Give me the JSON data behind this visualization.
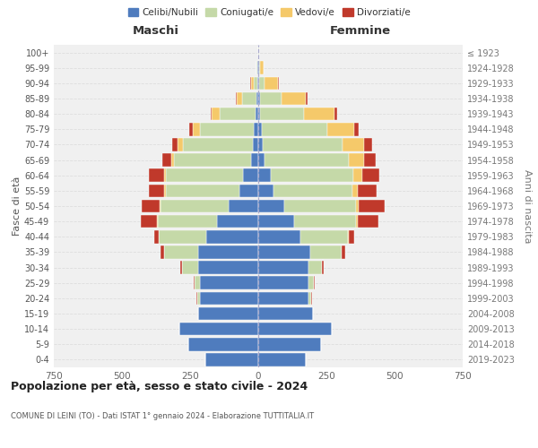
{
  "age_groups": [
    "0-4",
    "5-9",
    "10-14",
    "15-19",
    "20-24",
    "25-29",
    "30-34",
    "35-39",
    "40-44",
    "45-49",
    "50-54",
    "55-59",
    "60-64",
    "65-69",
    "70-74",
    "75-79",
    "80-84",
    "85-89",
    "90-94",
    "95-99",
    "100+"
  ],
  "birth_years": [
    "2019-2023",
    "2014-2018",
    "2009-2013",
    "2004-2008",
    "1999-2003",
    "1994-1998",
    "1989-1993",
    "1984-1988",
    "1979-1983",
    "1974-1978",
    "1969-1973",
    "1964-1968",
    "1959-1963",
    "1954-1958",
    "1949-1953",
    "1944-1948",
    "1939-1943",
    "1934-1938",
    "1929-1933",
    "1924-1928",
    "≤ 1923"
  ],
  "males": {
    "celibe": [
      195,
      255,
      290,
      220,
      215,
      215,
      220,
      220,
      190,
      150,
      110,
      70,
      55,
      25,
      20,
      15,
      10,
      5,
      3,
      2,
      0
    ],
    "coniugato": [
      0,
      0,
      0,
      2,
      10,
      20,
      60,
      125,
      175,
      220,
      250,
      270,
      285,
      285,
      255,
      200,
      130,
      55,
      15,
      3,
      0
    ],
    "vedovo": [
      0,
      0,
      0,
      0,
      0,
      0,
      0,
      0,
      1,
      2,
      3,
      5,
      5,
      8,
      20,
      25,
      30,
      20,
      8,
      2,
      0
    ],
    "divorziato": [
      0,
      0,
      0,
      0,
      2,
      2,
      5,
      15,
      15,
      60,
      65,
      55,
      55,
      35,
      20,
      12,
      5,
      3,
      2,
      0,
      0
    ]
  },
  "females": {
    "nubile": [
      175,
      230,
      270,
      200,
      185,
      185,
      185,
      190,
      155,
      130,
      95,
      55,
      45,
      22,
      18,
      12,
      8,
      5,
      3,
      2,
      0
    ],
    "coniugata": [
      0,
      0,
      0,
      2,
      10,
      20,
      50,
      115,
      175,
      230,
      265,
      290,
      305,
      310,
      290,
      240,
      160,
      80,
      20,
      5,
      2
    ],
    "vedova": [
      0,
      0,
      0,
      0,
      0,
      0,
      0,
      0,
      2,
      5,
      10,
      20,
      30,
      55,
      80,
      100,
      110,
      90,
      50,
      12,
      2
    ],
    "divorziata": [
      0,
      0,
      0,
      0,
      2,
      2,
      5,
      15,
      20,
      75,
      95,
      70,
      65,
      45,
      30,
      15,
      10,
      5,
      2,
      0,
      0
    ]
  },
  "colors": {
    "celibe": "#4f7cbe",
    "coniugato": "#c5d9a8",
    "vedovo": "#f5c96a",
    "divorziato": "#c0392b"
  },
  "title": "Popolazione per età, sesso e stato civile - 2024",
  "subtitle": "COMUNE DI LEINI (TO) - Dati ISTAT 1° gennaio 2024 - Elaborazione TUTTITALIA.IT",
  "xlabel_left": "Maschi",
  "xlabel_right": "Femmine",
  "ylabel_left": "Fasce di età",
  "ylabel_right": "Anni di nascita",
  "xlim": 750,
  "background_color": "#ffffff",
  "plot_bg": "#f0f0f0",
  "grid_color": "#dddddd"
}
